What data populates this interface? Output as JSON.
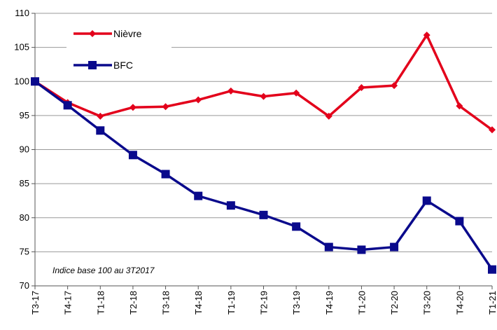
{
  "chart_data": {
    "type": "line",
    "categories": [
      "T3-17",
      "T4-17",
      "T1-18",
      "T2-18",
      "T3-18",
      "T4-18",
      "T1-19",
      "T2-19",
      "T3-19",
      "T4-19",
      "T1-20",
      "T2-20",
      "T3-20",
      "T4-20",
      "T1-21"
    ],
    "series": [
      {
        "name": "Nièvre",
        "color": "#e3001b",
        "marker": "diamond",
        "values": [
          100,
          96.9,
          94.9,
          96.2,
          96.3,
          97.3,
          98.6,
          97.8,
          98.3,
          94.9,
          99.1,
          99.4,
          106.8,
          96.4,
          92.9
        ]
      },
      {
        "name": "BFC",
        "color": "#0a0a8c",
        "marker": "square",
        "values": [
          100,
          96.5,
          92.8,
          89.2,
          86.4,
          83.2,
          81.8,
          80.4,
          78.7,
          75.7,
          75.3,
          75.7,
          82.5,
          79.5,
          72.4
        ]
      }
    ],
    "ylim": [
      70,
      110
    ],
    "yticks": [
      70,
      75,
      80,
      85,
      90,
      95,
      100,
      105,
      110
    ],
    "grid": true,
    "annotation": "Indice base 100 au 3T2017"
  }
}
